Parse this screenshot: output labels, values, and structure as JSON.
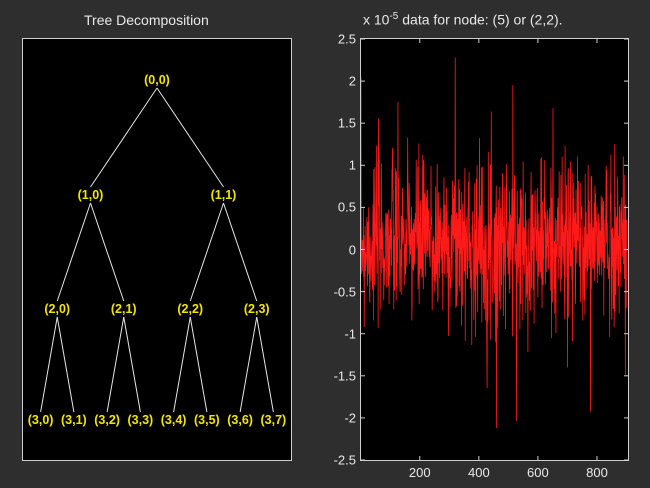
{
  "left_panel": {
    "title": "Tree Decomposition",
    "nodes": [
      {
        "id": "0-0",
        "label": "(0,0)",
        "level": 0,
        "index": 0
      },
      {
        "id": "1-0",
        "label": "(1,0)",
        "level": 1,
        "index": 0
      },
      {
        "id": "1-1",
        "label": "(1,1)",
        "level": 1,
        "index": 1
      },
      {
        "id": "2-0",
        "label": "(2,0)",
        "level": 2,
        "index": 0
      },
      {
        "id": "2-1",
        "label": "(2,1)",
        "level": 2,
        "index": 1
      },
      {
        "id": "2-2",
        "label": "(2,2)",
        "level": 2,
        "index": 2
      },
      {
        "id": "2-3",
        "label": "(2,3)",
        "level": 2,
        "index": 3
      },
      {
        "id": "3-0",
        "label": "(3,0)",
        "level": 3,
        "index": 0
      },
      {
        "id": "3-1",
        "label": "(3,1)",
        "level": 3,
        "index": 1
      },
      {
        "id": "3-2",
        "label": "(3,2)",
        "level": 3,
        "index": 2
      },
      {
        "id": "3-3",
        "label": "(3,3)",
        "level": 3,
        "index": 3
      },
      {
        "id": "3-4",
        "label": "(3,4)",
        "level": 3,
        "index": 4
      },
      {
        "id": "3-5",
        "label": "(3,5)",
        "level": 3,
        "index": 5
      },
      {
        "id": "3-6",
        "label": "(3,6)",
        "level": 3,
        "index": 6
      },
      {
        "id": "3-7",
        "label": "(3,7)",
        "level": 3,
        "index": 7
      }
    ],
    "edge_color": "#e6e6e6",
    "label_color": "#f2e500"
  },
  "chart_data": {
    "type": "line",
    "title_exponent": "x 10",
    "title_superscript": "-5",
    "title": "data for node: (5) or (2,2).",
    "y_ticks": [
      "2.5",
      "2",
      "1.5",
      "1",
      "0.5",
      "0",
      "-0.5",
      "-1",
      "-1.5",
      "-2",
      "-2.5"
    ],
    "x_ticks": [
      "200",
      "400",
      "600",
      "800"
    ],
    "x_tick_values": [
      200,
      400,
      600,
      800
    ],
    "xlim": [
      1,
      905
    ],
    "ylim": [
      -2.5,
      2.5
    ],
    "series_color": "#ff1a1a",
    "n_points": 900,
    "mean": 0.1,
    "std": 0.5,
    "seed": 7,
    "spikes": [
      {
        "x": 320,
        "y": 2.28
      },
      {
        "x": 460,
        "y": -2.12
      },
      {
        "x": 515,
        "y": 1.95
      },
      {
        "x": 58,
        "y": 1.05
      },
      {
        "x": 700,
        "y": -1.4
      }
    ]
  }
}
